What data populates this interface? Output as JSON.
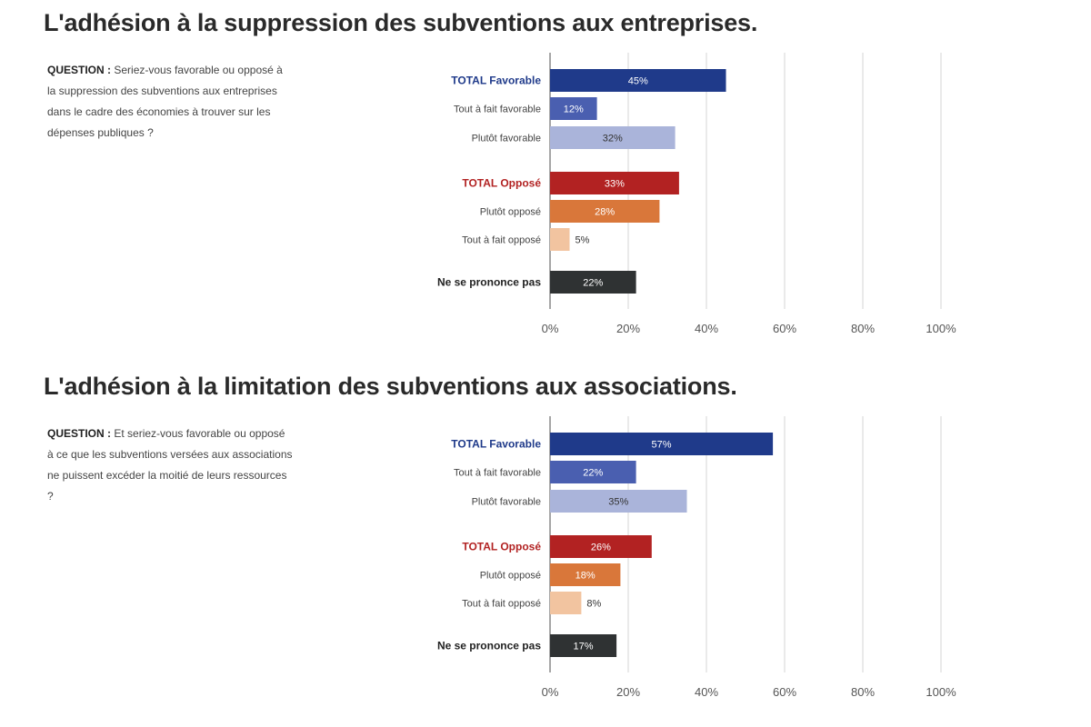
{
  "panels": [
    {
      "title": "L'adhésion à la suppression des subventions aux entreprises.",
      "question_label": "QUESTION :",
      "question_text": "Seriez-vous favorable ou opposé à la suppression des subventions aux entreprises dans le cadre des économies à trouver sur les dépenses publiques ?"
    },
    {
      "title": "L'adhésion à la limitation des subventions aux associations.",
      "question_label": "QUESTION :",
      "question_text": "Et seriez-vous favorable ou opposé à ce que les subventions versées aux associations ne puissent excéder la moitié de leurs ressources ?"
    }
  ],
  "chart_data": [
    {
      "type": "bar",
      "orientation": "horizontal",
      "categories": [
        "TOTAL Favorable",
        "Tout à fait favorable",
        "Plutôt favorable",
        "TOTAL Opposé",
        "Plutôt opposé",
        "Tout à fait opposé",
        "Ne se prononce pas"
      ],
      "values": [
        45,
        12,
        32,
        33,
        28,
        5,
        22
      ],
      "value_labels": [
        "45%",
        "12%",
        "32%",
        "33%",
        "28%",
        "5%",
        "22%"
      ],
      "xlim": [
        0,
        100
      ],
      "xticks": [
        "0%",
        "20%",
        "40%",
        "60%",
        "80%",
        "100%"
      ],
      "grid": true,
      "colors": [
        "#1f3a8a",
        "#4a5fb0",
        "#aab4da",
        "#b22222",
        "#d9773a",
        "#f2c4a0",
        "#2f3233"
      ],
      "category_colors": [
        "#1f3a8a",
        "#444444",
        "#444444",
        "#b22222",
        "#444444",
        "#444444",
        "#222222"
      ]
    },
    {
      "type": "bar",
      "orientation": "horizontal",
      "categories": [
        "TOTAL Favorable",
        "Tout à fait favorable",
        "Plutôt favorable",
        "TOTAL Opposé",
        "Plutôt opposé",
        "Tout à fait opposé",
        "Ne se prononce pas"
      ],
      "values": [
        57,
        22,
        35,
        26,
        18,
        8,
        17
      ],
      "value_labels": [
        "57%",
        "22%",
        "35%",
        "26%",
        "18%",
        "8%",
        "17%"
      ],
      "xlim": [
        0,
        100
      ],
      "xticks": [
        "0%",
        "20%",
        "40%",
        "60%",
        "80%",
        "100%"
      ],
      "grid": true,
      "colors": [
        "#1f3a8a",
        "#4a5fb0",
        "#aab4da",
        "#b22222",
        "#d9773a",
        "#f2c4a0",
        "#2f3233"
      ],
      "category_colors": [
        "#1f3a8a",
        "#444444",
        "#444444",
        "#b22222",
        "#444444",
        "#444444",
        "#222222"
      ]
    }
  ]
}
